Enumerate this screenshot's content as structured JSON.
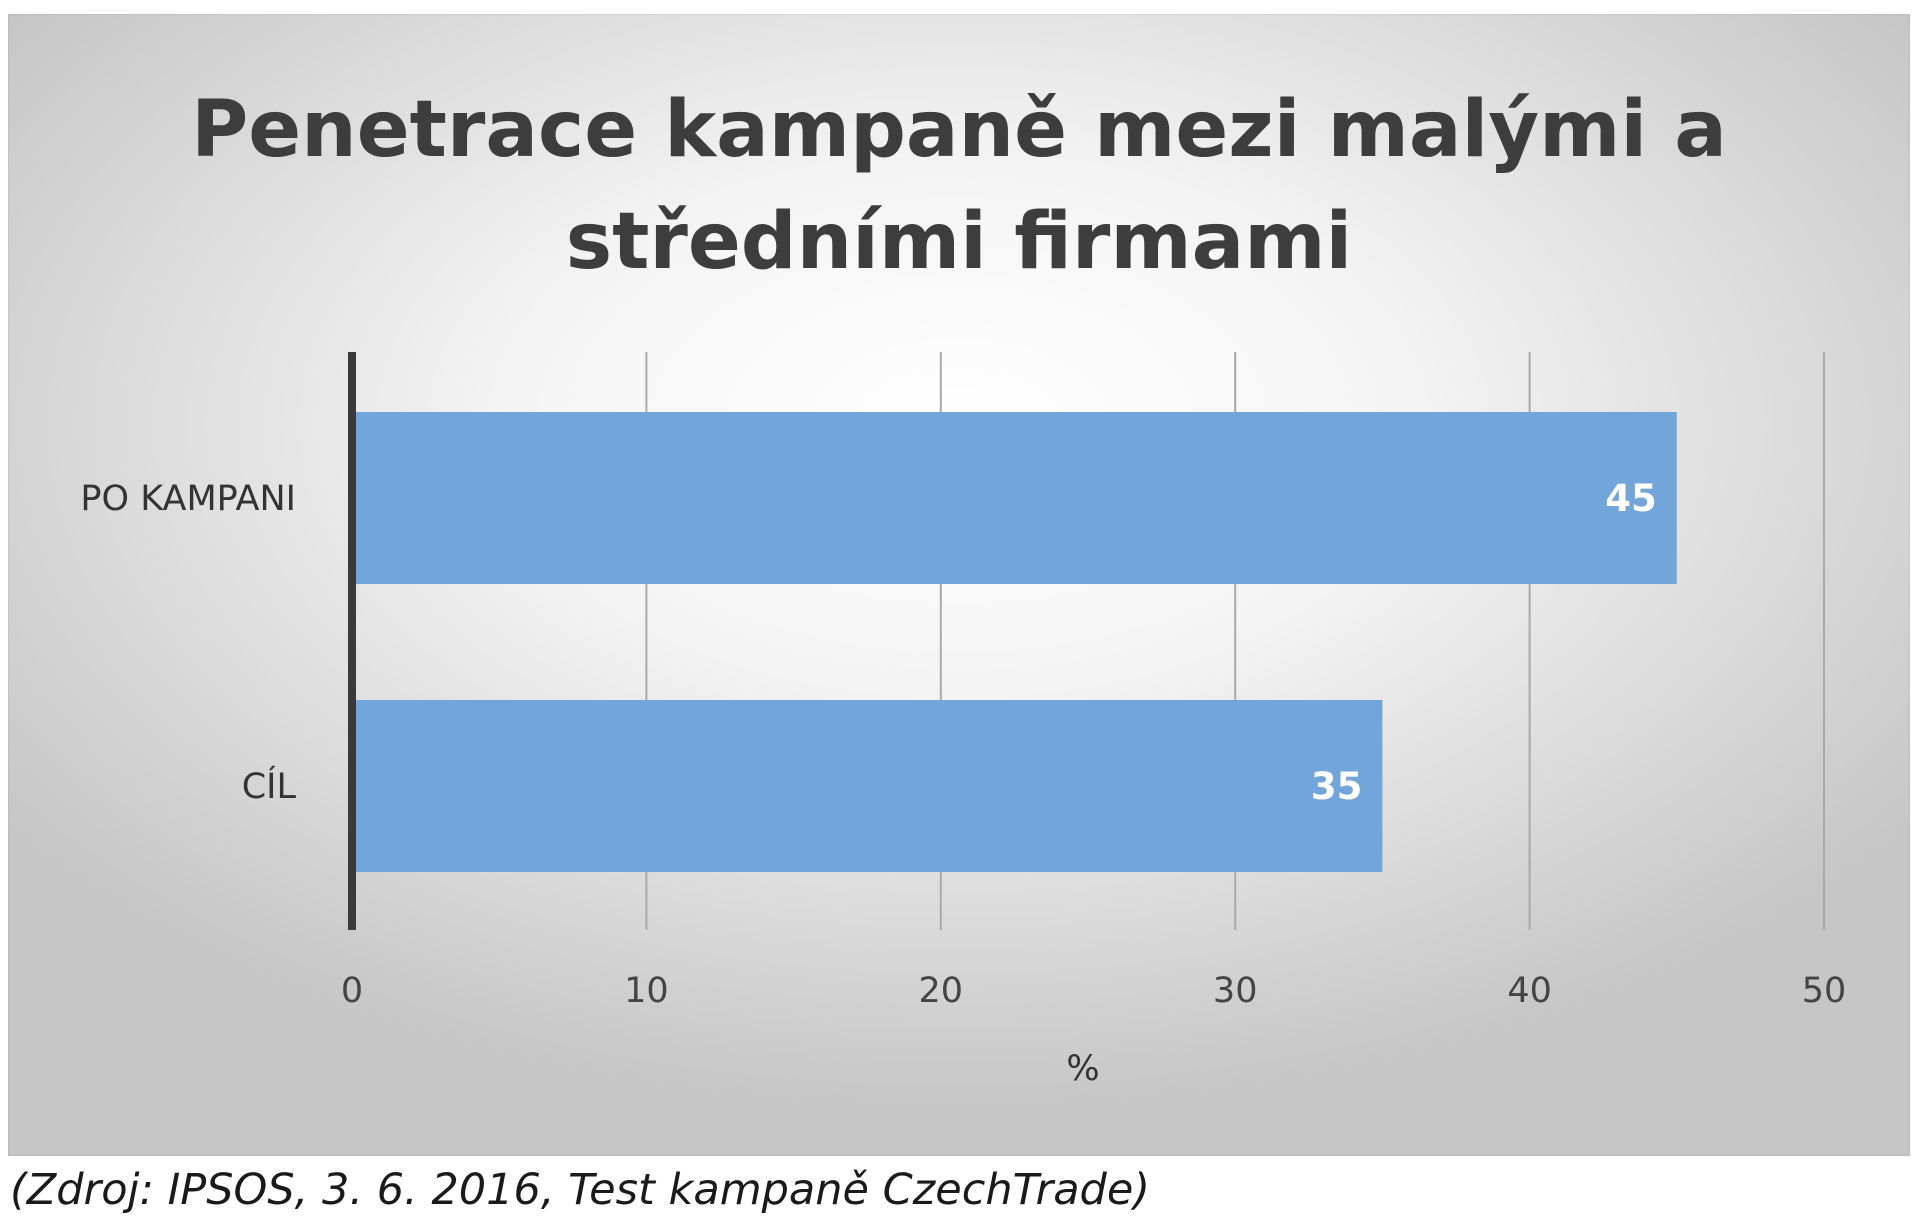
{
  "chart_data": {
    "type": "bar",
    "orientation": "horizontal",
    "title": "Penetrace kampaně mezi malými a středními firmami",
    "categories": [
      "PO KAMPANI",
      "CÍL"
    ],
    "values": [
      45,
      35
    ],
    "data_labels": [
      "45",
      "35"
    ],
    "xlabel": "%",
    "ylabel": "",
    "xlim": [
      0,
      50
    ],
    "x_ticks": [
      0,
      10,
      20,
      30,
      40,
      50
    ],
    "x_tick_labels": [
      "0",
      "10",
      "20",
      "30",
      "40",
      "50"
    ],
    "grid": true,
    "legend": "none",
    "bar_color": "#72a6da",
    "axis_color": "#3a3a3a",
    "grid_color": "#a9a9a9"
  },
  "source": "(Zdroj: IPSOS, 3. 6. 2016, Test kampaně CzechTrade)"
}
